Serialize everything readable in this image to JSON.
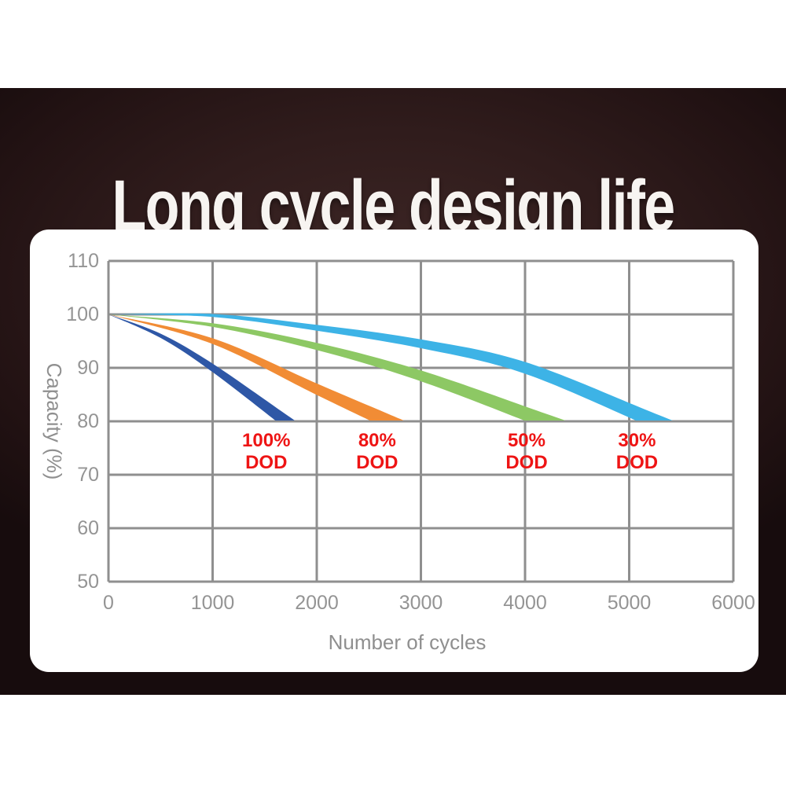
{
  "title": "Long cycle design life",
  "colors": {
    "backdrop_dark": "#2e1b1b",
    "panel": "#ffffff",
    "title_text": "#f7f4f1",
    "grid": "#8f8f8f",
    "tick_text": "#949494",
    "annotation_red": "#ee1414"
  },
  "chart_data": {
    "type": "area",
    "title": "",
    "xlabel": "Number of cycles",
    "ylabel": "Capacity (%)",
    "xlim": [
      0,
      6000
    ],
    "ylim": [
      50,
      110
    ],
    "x_ticks": [
      0,
      1000,
      2000,
      3000,
      4000,
      5000,
      6000
    ],
    "y_ticks": [
      110,
      100,
      90,
      80,
      70,
      60,
      50
    ],
    "grid": true,
    "legend_position": "none",
    "series": [
      {
        "name": "100% DOD",
        "color": "#2e57a6",
        "points": [
          [
            0,
            100
          ],
          [
            500,
            96
          ],
          [
            1000,
            90
          ],
          [
            1700,
            80
          ]
        ]
      },
      {
        "name": "80% DOD",
        "color": "#f18c35",
        "points": [
          [
            0,
            100
          ],
          [
            1000,
            95
          ],
          [
            2000,
            86
          ],
          [
            2680,
            80
          ]
        ]
      },
      {
        "name": "50% DOD",
        "color": "#8dc864",
        "points": [
          [
            0,
            100
          ],
          [
            1000,
            98
          ],
          [
            2000,
            94
          ],
          [
            3000,
            88.5
          ],
          [
            4200,
            80
          ]
        ]
      },
      {
        "name": "30% DOD",
        "color": "#3db3e6",
        "points": [
          [
            0,
            100
          ],
          [
            1000,
            99.8
          ],
          [
            2000,
            97.5
          ],
          [
            3000,
            94.5
          ],
          [
            4000,
            90
          ],
          [
            5250,
            80
          ]
        ]
      }
    ],
    "annotations": [
      {
        "line1": "100%",
        "line2": "DOD",
        "x_cycles": 1515
      },
      {
        "line1": "80%",
        "line2": "DOD",
        "x_cycles": 2580
      },
      {
        "line1": "50%",
        "line2": "DOD",
        "x_cycles": 4015
      },
      {
        "line1": "30%",
        "line2": "DOD",
        "x_cycles": 5075
      }
    ]
  }
}
